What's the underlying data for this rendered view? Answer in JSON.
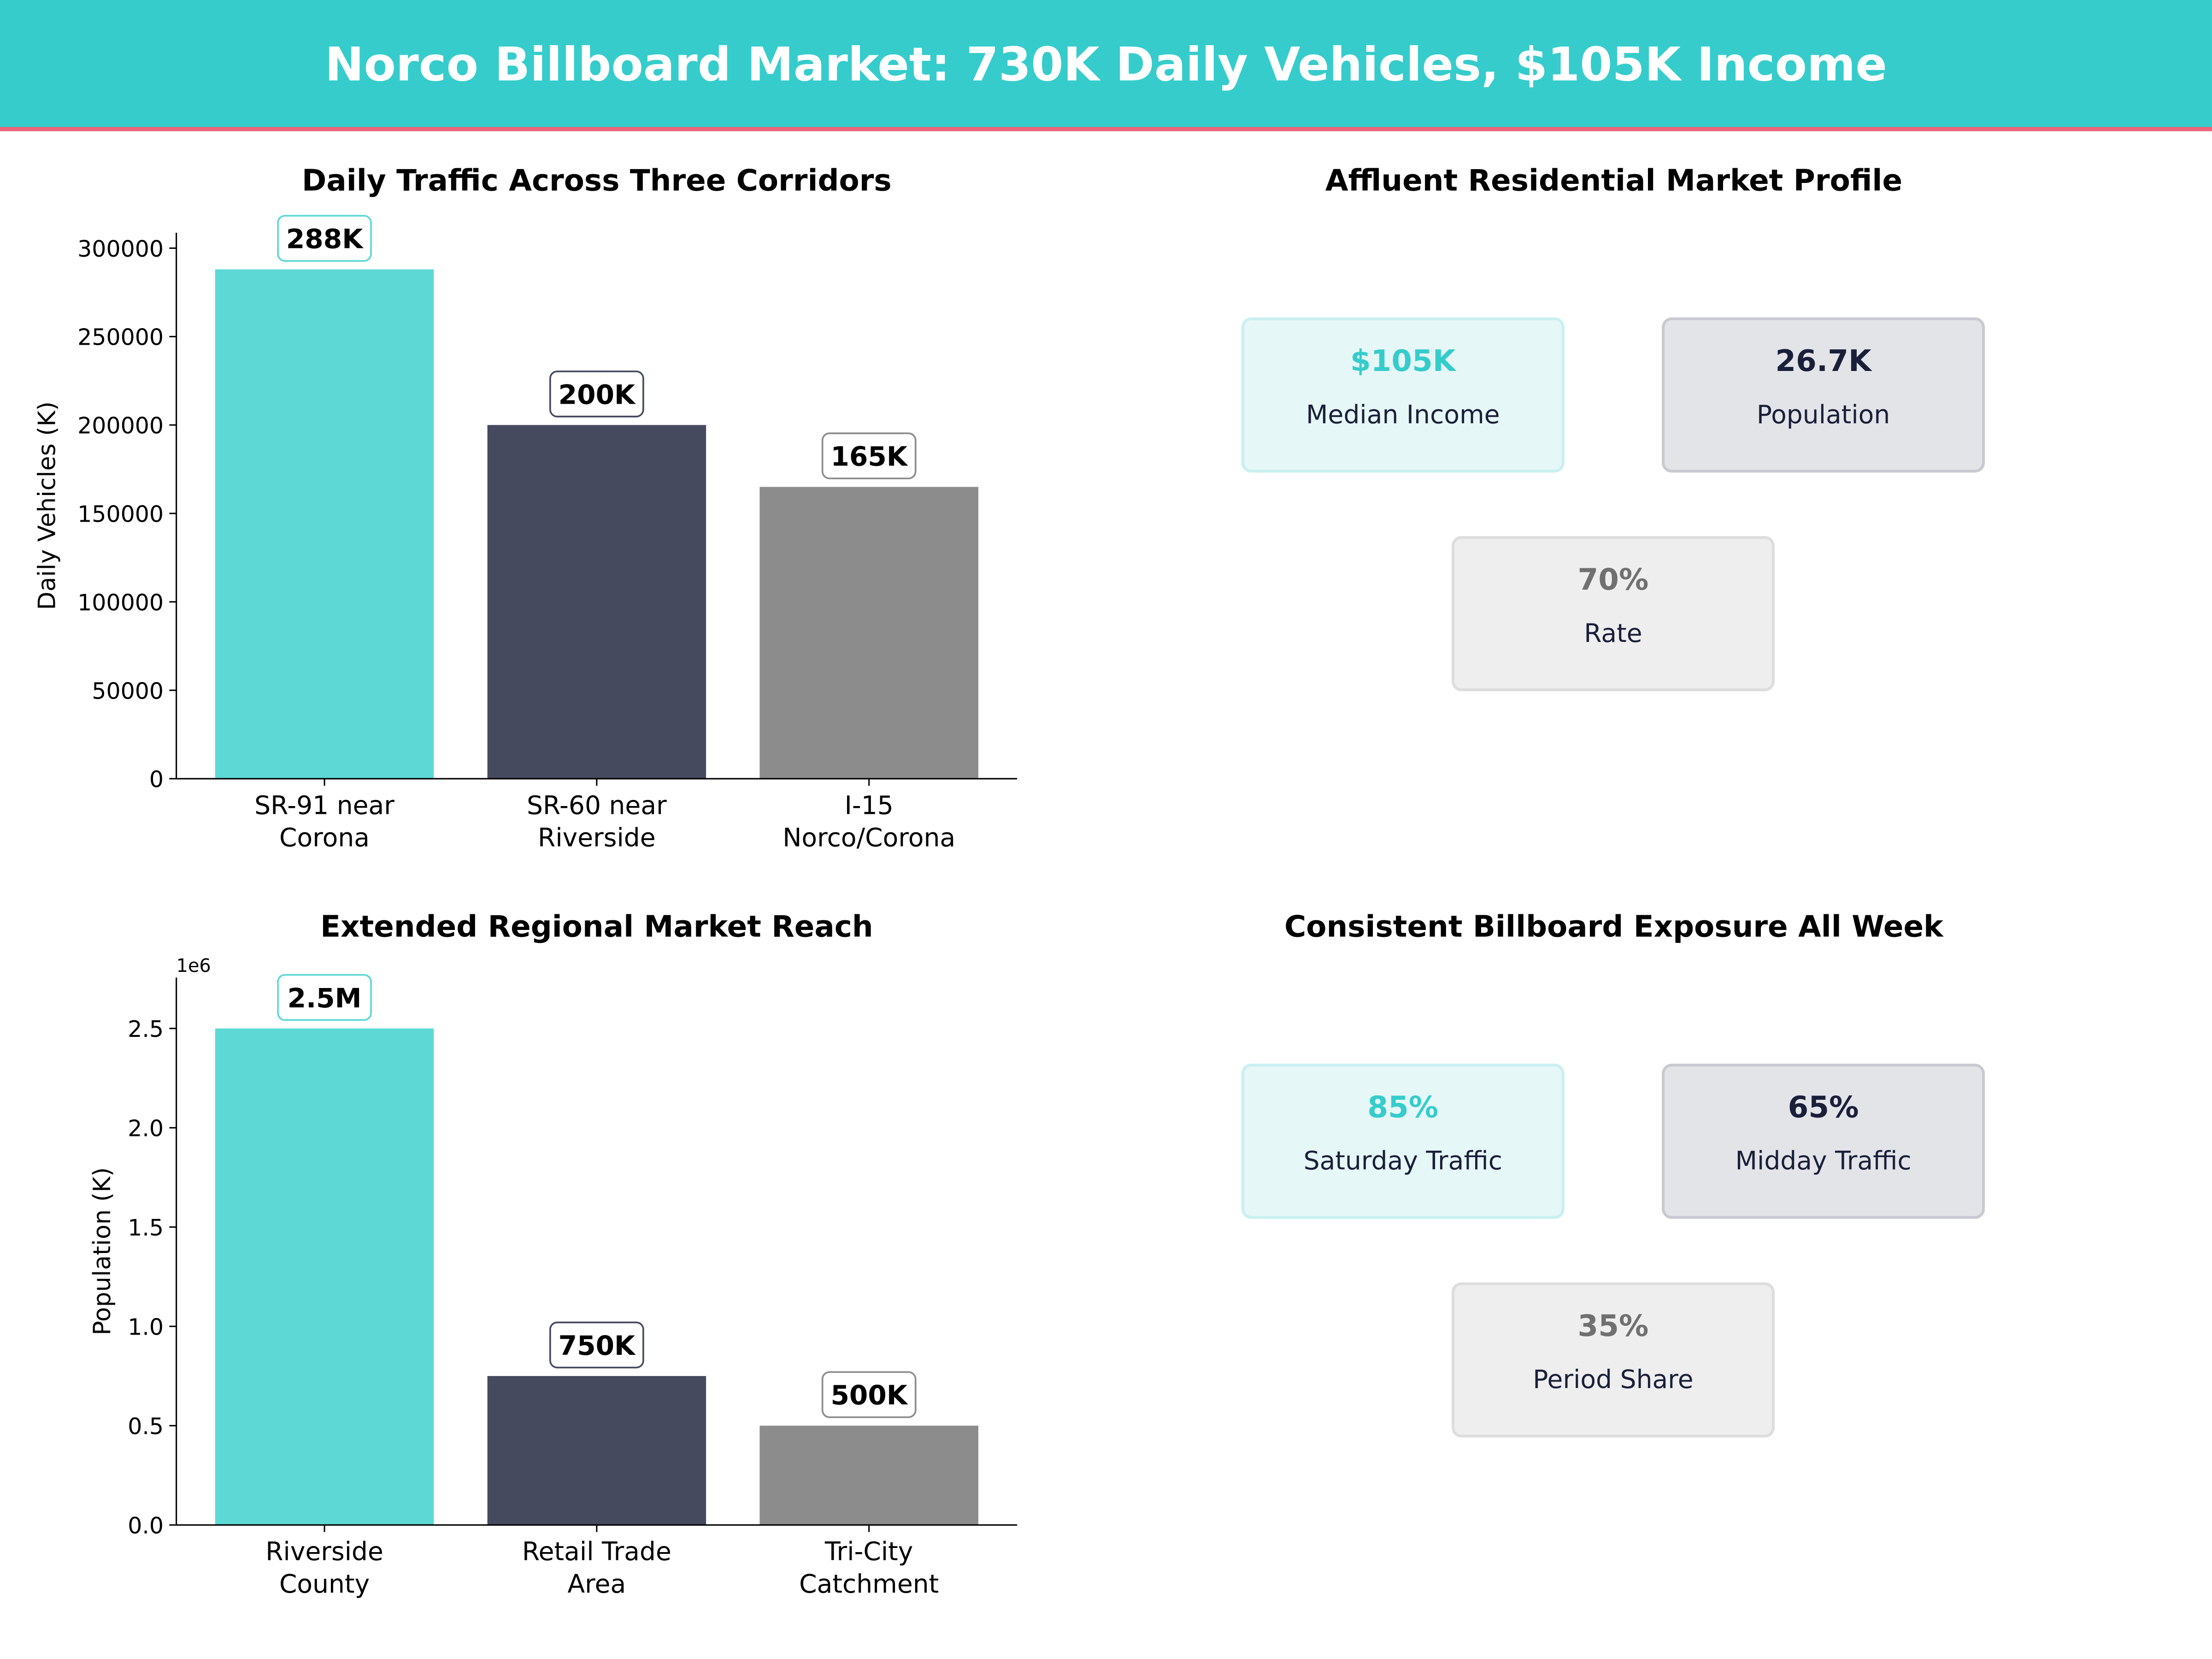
{
  "header": {
    "title": "Norco Billboard Market: 730K Daily Vehicles, $105K Income"
  },
  "colors": {
    "header_bg": "#36CCCC",
    "header_rule": "#F0637A",
    "teal": "#5DD8D5",
    "navy": "#464A5F",
    "gray": "#8C8C8C"
  },
  "chart_data": [
    {
      "type": "bar",
      "title": "Daily Traffic Across Three Corridors",
      "xlabel": "",
      "ylabel": "Daily Vehicles (K)",
      "categories": [
        "SR-91 near\nCorona",
        "SR-60 near\nRiverside",
        "I-15\nNorco/Corona"
      ],
      "values": [
        288000,
        200000,
        165000
      ],
      "data_labels": [
        "288K",
        "200K",
        "165K"
      ],
      "bar_colors": [
        "#5DD8D5",
        "#464A5F",
        "#8C8C8C"
      ],
      "ylim": [
        0,
        308700
      ],
      "yticks": [
        0,
        50000,
        100000,
        150000,
        200000,
        250000,
        300000
      ],
      "ytick_labels": [
        "0",
        "50000",
        "100000",
        "150000",
        "200000",
        "250000",
        "300000"
      ],
      "offset_label": "",
      "grid": false
    },
    {
      "type": "bar",
      "title": "Extended Regional Market Reach",
      "xlabel": "",
      "ylabel": "Population (K)",
      "categories": [
        "Riverside\nCounty",
        "Retail Trade\nArea",
        "Tri-City\nCatchment"
      ],
      "values": [
        2500000,
        750000,
        500000
      ],
      "data_labels": [
        "2.5M",
        "750K",
        "500K"
      ],
      "bar_colors": [
        "#5DD8D5",
        "#464A5F",
        "#8C8C8C"
      ],
      "ylim": [
        0,
        2756000
      ],
      "yticks": [
        0,
        500000,
        1000000,
        1500000,
        2000000,
        2500000
      ],
      "ytick_labels": [
        "0.0",
        "0.5",
        "1.0",
        "1.5",
        "2.0",
        "2.5"
      ],
      "offset_label": "1e6",
      "grid": false
    }
  ],
  "kpi_panels": [
    {
      "title": "Affluent Residential Market Profile",
      "cards": [
        {
          "value": "$105K",
          "label": "Median Income",
          "style": "teal"
        },
        {
          "value": "26.7K",
          "label": "Population",
          "style": "navy"
        },
        {
          "value": "70%",
          "label": "Rate",
          "style": "gray"
        }
      ]
    },
    {
      "title": "Consistent Billboard Exposure All Week",
      "cards": [
        {
          "value": "85%",
          "label": "Saturday Traffic",
          "style": "teal"
        },
        {
          "value": "65%",
          "label": "Midday Traffic",
          "style": "navy"
        },
        {
          "value": "35%",
          "label": "Period Share",
          "style": "gray"
        }
      ]
    }
  ]
}
